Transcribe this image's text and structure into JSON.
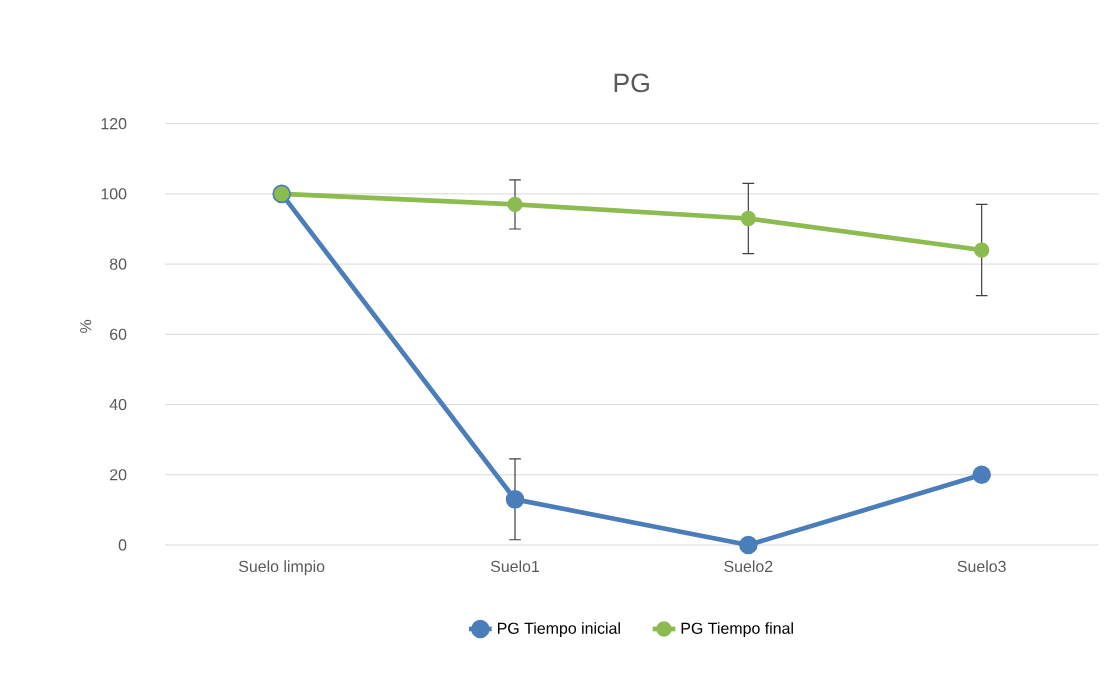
{
  "chart_data": {
    "type": "line",
    "title": "PG",
    "ylabel": "%",
    "categories": [
      "Suelo limpio",
      "Suelo1",
      "Suelo2",
      "Suelo3"
    ],
    "series": [
      {
        "name": "PG Tiempo inicial",
        "color": "#4a7ebb",
        "values": [
          100,
          13,
          0,
          20
        ],
        "errors": [
          null,
          11.5,
          null,
          null
        ]
      },
      {
        "name": "PG Tiempo final",
        "color": "#8cbb4f",
        "values": [
          100,
          97,
          93,
          84
        ],
        "errors": [
          null,
          7,
          10,
          13
        ]
      }
    ],
    "ylim": [
      0,
      120
    ],
    "yticks": [
      0,
      20,
      40,
      60,
      80,
      100,
      120
    ],
    "grid": "y",
    "legend": "bottom",
    "marker": "circle",
    "line_style": "solid"
  }
}
